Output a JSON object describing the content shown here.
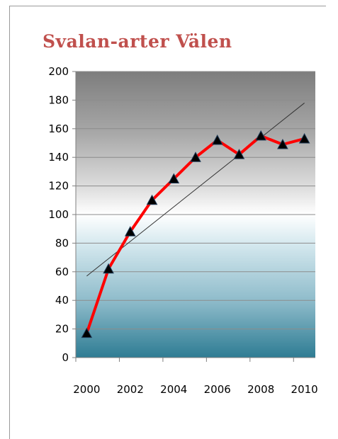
{
  "chart_data": {
    "type": "line",
    "title": "Svalan-arter Välen",
    "x": [
      2000,
      2001,
      2002,
      2003,
      2004,
      2005,
      2006,
      2007,
      2008,
      2009,
      2010
    ],
    "series": [
      {
        "values": [
          17,
          62,
          88,
          110,
          125,
          140,
          152,
          142,
          155,
          149,
          153
        ],
        "color": "#ff0000",
        "marker": "triangle"
      }
    ],
    "trendline": {
      "type": "linear",
      "color": "#333333",
      "from": [
        2000,
        57
      ],
      "to": [
        2010,
        178
      ]
    },
    "x_tick_labels": [
      "2000",
      "2002",
      "2004",
      "2006",
      "2008",
      "2010"
    ],
    "y_tick_labels": [
      "0",
      "20",
      "40",
      "60",
      "80",
      "100",
      "120",
      "140",
      "160",
      "180",
      "200"
    ],
    "xlim": [
      1999.5,
      2010.5
    ],
    "ylim": [
      0,
      200
    ],
    "grid": true,
    "legend": "none"
  }
}
